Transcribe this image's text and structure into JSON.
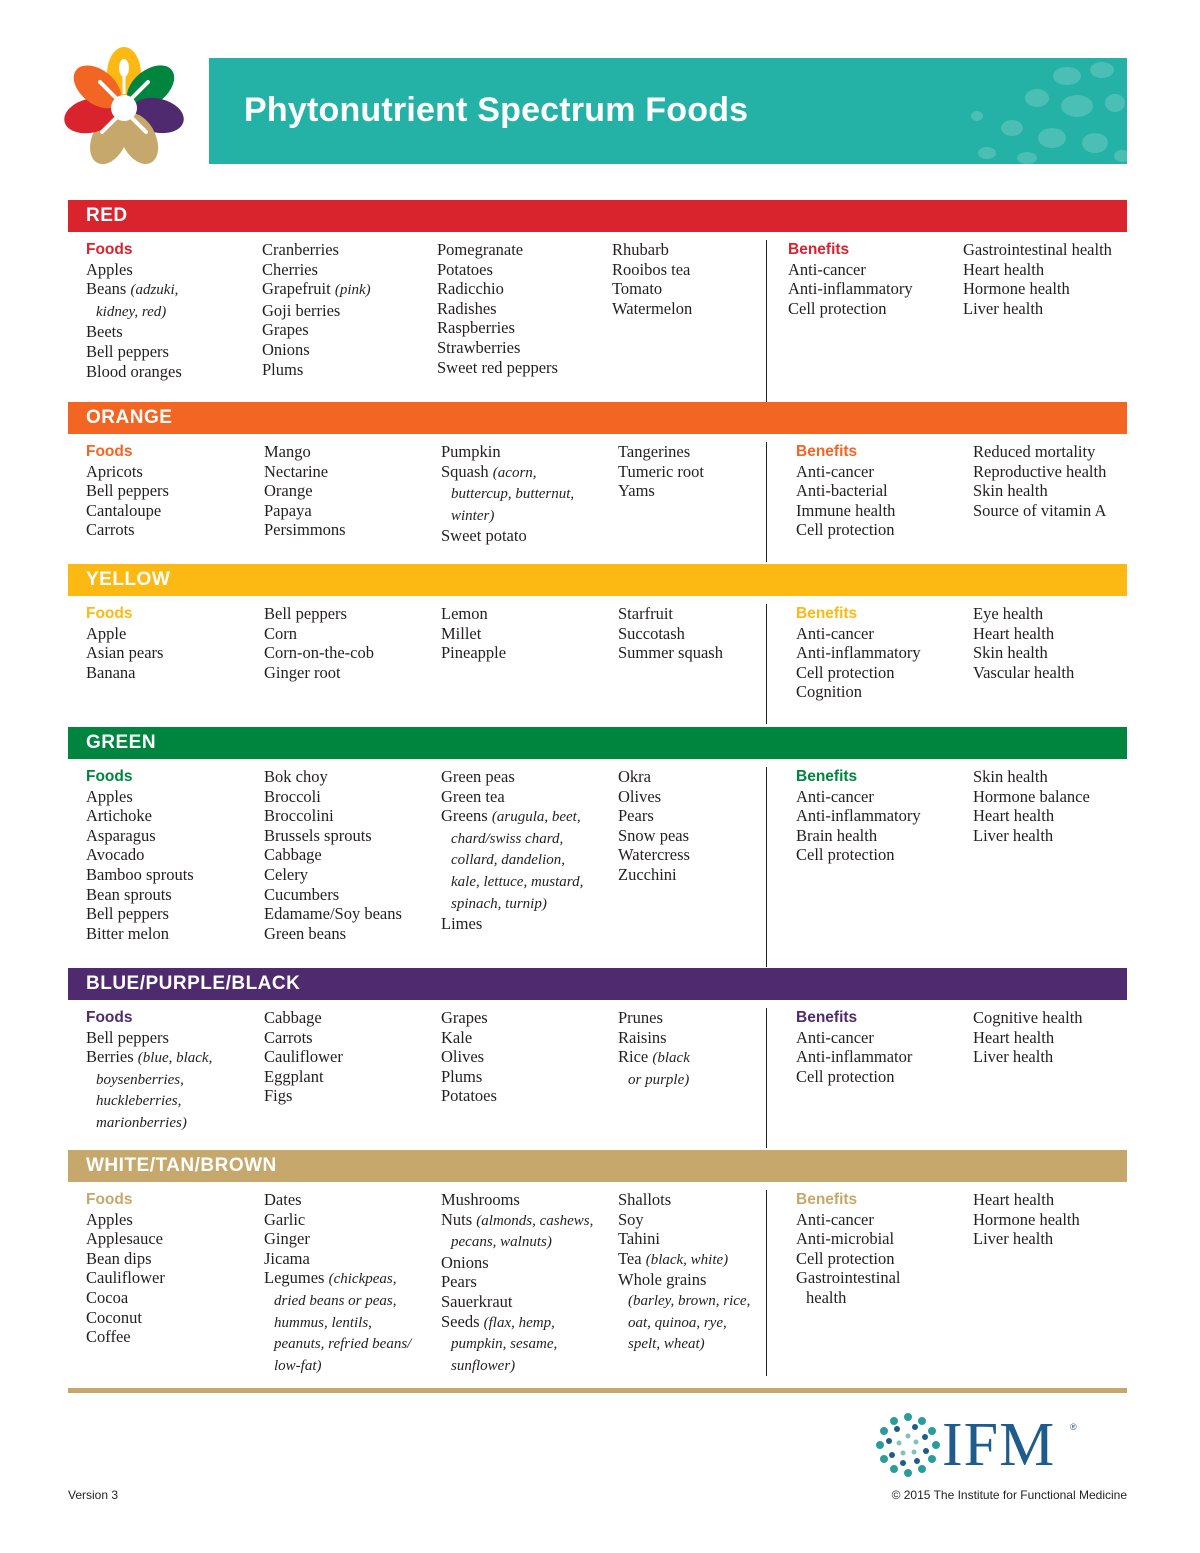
{
  "title": "Phytonutrient Spectrum Foods",
  "labels": {
    "foods": "Foods",
    "benefits": "Benefits"
  },
  "colors": {
    "banner": "#24b1a6",
    "red": "#d9232d",
    "orange": "#f26522",
    "yellow": "#fdb913",
    "green": "#00853f",
    "purple": "#4f2a6f",
    "tan": "#c7a86c"
  },
  "sections": [
    {
      "name": "RED",
      "foods": [
        [
          "Apples",
          "Beans (adzuki, kidney, red)",
          "Beets",
          "Bell peppers",
          "Blood oranges"
        ],
        [
          "Cranberries",
          "Cherries",
          "Grapefruit (pink)",
          "Goji berries",
          "Grapes",
          "Onions",
          "Plums"
        ],
        [
          "Pomegranate",
          "Potatoes",
          "Radicchio",
          "Radishes",
          "Raspberries",
          "Strawberries",
          "Sweet red peppers"
        ],
        [
          "Rhubarb",
          "Rooibos tea",
          "Tomato",
          "Watermelon"
        ]
      ],
      "benefits": [
        [
          "Anti-cancer",
          "Anti-inflammatory",
          "Cell protection"
        ],
        [
          "Gastrointestinal health",
          "Heart health",
          "Hormone health",
          "Liver health"
        ]
      ]
    },
    {
      "name": "ORANGE",
      "foods": [
        [
          "Apricots",
          "Bell peppers",
          "Cantaloupe",
          "Carrots"
        ],
        [
          "Mango",
          "Nectarine",
          "Orange",
          "Papaya",
          "Persimmons"
        ],
        [
          "Pumpkin",
          "Squash (acorn, buttercup, butternut, winter)",
          "Sweet potato"
        ],
        [
          "Tangerines",
          "Tumeric root",
          "Yams"
        ]
      ],
      "benefits": [
        [
          "Anti-cancer",
          "Anti-bacterial",
          "Immune health",
          "Cell protection"
        ],
        [
          "Reduced mortality",
          "Reproductive health",
          "Skin health",
          "Source of vitamin A"
        ]
      ]
    },
    {
      "name": "YELLOW",
      "foods": [
        [
          "Apple",
          "Asian pears",
          "Banana"
        ],
        [
          "Bell peppers",
          "Corn",
          "Corn-on-the-cob",
          "Ginger root"
        ],
        [
          "Lemon",
          "Millet",
          "Pineapple"
        ],
        [
          "Starfruit",
          "Succotash",
          "Summer squash"
        ]
      ],
      "benefits": [
        [
          "Anti-cancer",
          "Anti-inflammatory",
          "Cell protection",
          "Cognition"
        ],
        [
          "Eye health",
          "Heart health",
          "Skin health",
          "Vascular health"
        ]
      ]
    },
    {
      "name": "GREEN",
      "foods": [
        [
          "Apples",
          "Artichoke",
          "Asparagus",
          "Avocado",
          "Bamboo sprouts",
          "Bean sprouts",
          "Bell peppers",
          "Bitter melon"
        ],
        [
          "Bok choy",
          "Broccoli",
          "Broccolini",
          "Brussels sprouts",
          "Cabbage",
          "Celery",
          "Cucumbers",
          "Edamame/Soy beans",
          "Green beans"
        ],
        [
          "Green peas",
          "Green tea",
          "Greens (arugula, beet, chard/swiss chard, collard, dandelion, kale, lettuce, mustard, spinach, turnip)",
          "Limes"
        ],
        [
          "Okra",
          "Olives",
          "Pears",
          "Snow peas",
          "Watercress",
          "Zucchini"
        ]
      ],
      "benefits": [
        [
          "Anti-cancer",
          "Anti-inflammatory",
          "Brain health",
          "Cell protection"
        ],
        [
          "Skin health",
          "Hormone balance",
          "Heart health",
          "Liver health"
        ]
      ]
    },
    {
      "name": "BLUE/PURPLE/BLACK",
      "foods": [
        [
          "Bell peppers",
          "Berries (blue, black, boysenberries, huckleberries, marionberries)"
        ],
        [
          "Cabbage",
          "Carrots",
          "Cauliflower",
          "Eggplant",
          "Figs"
        ],
        [
          "Grapes",
          "Kale",
          "Olives",
          "Plums",
          "Potatoes"
        ],
        [
          "Prunes",
          "Raisins",
          "Rice (black or purple)"
        ]
      ],
      "benefits": [
        [
          "Anti-cancer",
          "Anti-inflammator",
          "Cell protection"
        ],
        [
          "Cognitive health",
          "Heart health",
          "Liver health"
        ]
      ]
    },
    {
      "name": "WHITE/TAN/BROWN",
      "foods": [
        [
          "Apples",
          "Applesauce",
          "Bean dips",
          "Cauliflower",
          "Cocoa",
          "Coconut",
          "Coffee"
        ],
        [
          "Dates",
          "Garlic",
          "Ginger",
          "Jicama",
          "Legumes (chickpeas, dried beans or peas, hummus, lentils, peanuts, refried beans/ low-fat)"
        ],
        [
          "Mushrooms",
          "Nuts (almonds, cashews, pecans, walnuts)",
          "Onions",
          "Pears",
          "Sauerkraut",
          "Seeds (flax, hemp, pumpkin, sesame, sunflower)"
        ],
        [
          "Shallots",
          "Soy",
          "Tahini",
          "Tea (black, white)",
          "Whole grains (barley, brown, rice, oat, quinoa, rye, spelt, wheat)"
        ]
      ],
      "benefits": [
        [
          "Anti-cancer",
          "Anti-microbial",
          "Cell protection",
          "Gastrointestinal health"
        ],
        [
          "Heart health",
          "Hormone health",
          "Liver health"
        ]
      ]
    }
  ],
  "logo_text": "IFM",
  "logo_mark": "®",
  "footer": {
    "version": "Version 3",
    "copyright": "© 2015 The Institute for Functional Medicine"
  }
}
